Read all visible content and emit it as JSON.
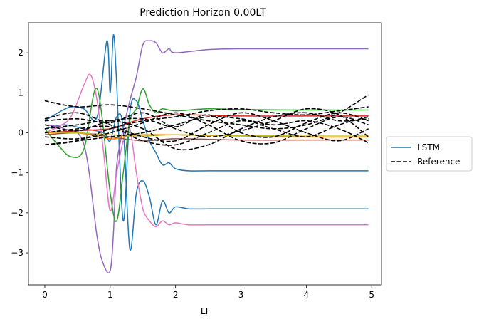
{
  "chart_data": {
    "type": "line",
    "title": "Prediction Horizon 0.00LT",
    "xlabel": "LT",
    "ylabel": "",
    "xlim": [
      -0.25,
      5.15
    ],
    "ylim": [
      -3.8,
      2.75
    ],
    "xticks": [
      0,
      1,
      2,
      3,
      4,
      5
    ],
    "yticks": [
      -3,
      -2,
      -1,
      0,
      1,
      2
    ],
    "grid": false,
    "legend": {
      "placement": "center-right-outside",
      "entries": [
        {
          "label": "LSTM",
          "style": "solid",
          "color": "#1f77b4"
        },
        {
          "label": "Reference",
          "style": "dashed",
          "color": "#000000"
        }
      ]
    },
    "series": [
      {
        "group": "LSTM",
        "color": "#1f77b4",
        "style": "solid",
        "x": [
          0,
          0.2,
          0.4,
          0.6,
          0.8,
          0.95,
          1.0,
          1.05,
          1.1,
          1.2,
          1.3,
          1.4,
          1.5,
          1.6,
          1.7,
          1.8,
          1.9,
          2.0,
          2.2,
          2.5,
          3.0,
          4.0,
          4.95
        ],
        "y": [
          0.3,
          0.5,
          0.65,
          0.6,
          0.4,
          2.3,
          1.0,
          2.45,
          1.2,
          -2.2,
          0.5,
          0.8,
          0.3,
          -0.2,
          -0.5,
          -0.8,
          -0.75,
          -0.9,
          -0.95,
          -0.95,
          -0.95,
          -0.95,
          -0.95
        ]
      },
      {
        "group": "LSTM",
        "color": "#1f77b4",
        "style": "solid",
        "x": [
          0,
          0.3,
          0.6,
          0.9,
          1.0,
          1.1,
          1.2,
          1.3,
          1.4,
          1.5,
          1.6,
          1.7,
          1.8,
          1.9,
          2.0,
          2.2,
          2.5,
          3.0,
          4.0,
          4.95
        ],
        "y": [
          0.1,
          0.2,
          0.1,
          0.0,
          -0.2,
          0.4,
          0.1,
          -2.9,
          -1.5,
          -1.2,
          -1.6,
          -2.3,
          -1.7,
          -2.0,
          -1.85,
          -1.9,
          -1.9,
          -1.9,
          -1.9,
          -1.9
        ]
      },
      {
        "group": "LSTM",
        "color": "#9467bd",
        "style": "solid",
        "x": [
          0,
          0.3,
          0.6,
          0.8,
          0.9,
          1.0,
          1.05,
          1.1,
          1.2,
          1.3,
          1.4,
          1.5,
          1.6,
          1.7,
          1.8,
          1.9,
          2.0,
          2.5,
          3.0,
          4.0,
          4.95
        ],
        "y": [
          0.2,
          0.1,
          -0.3,
          -2.6,
          -3.3,
          -3.45,
          -2.5,
          -0.8,
          0.1,
          0.8,
          1.4,
          2.2,
          2.3,
          2.25,
          2.0,
          2.1,
          2.0,
          2.08,
          2.1,
          2.1,
          2.1
        ]
      },
      {
        "group": "LSTM",
        "color": "#e377c2",
        "style": "solid",
        "x": [
          0,
          0.2,
          0.4,
          0.6,
          0.7,
          0.8,
          0.9,
          1.0,
          1.1,
          1.2,
          1.3,
          1.4,
          1.5,
          1.6,
          1.7,
          1.8,
          1.9,
          2.0,
          2.2,
          2.5,
          3.0,
          4.0,
          4.95
        ],
        "y": [
          0.0,
          0.15,
          0.4,
          1.2,
          1.45,
          0.8,
          -0.5,
          -1.95,
          -1.0,
          -0.2,
          0.1,
          -1.0,
          -1.9,
          -2.2,
          -2.35,
          -2.2,
          -2.3,
          -2.25,
          -2.3,
          -2.3,
          -2.3,
          -2.3,
          -2.3
        ]
      },
      {
        "group": "LSTM",
        "color": "#2ca02c",
        "style": "solid",
        "x": [
          0,
          0.2,
          0.4,
          0.6,
          0.8,
          1.0,
          1.1,
          1.2,
          1.3,
          1.4,
          1.5,
          1.6,
          1.7,
          1.8,
          2.0,
          2.5,
          3.0,
          4.0,
          4.95
        ],
        "y": [
          0.1,
          -0.3,
          -0.6,
          -0.4,
          1.1,
          -1.5,
          -2.2,
          -1.0,
          0.3,
          0.6,
          1.1,
          0.7,
          0.5,
          0.6,
          0.55,
          0.6,
          0.58,
          0.57,
          0.57
        ]
      },
      {
        "group": "LSTM",
        "color": "#d62728",
        "style": "solid",
        "x": [
          0,
          0.5,
          1.0,
          1.2,
          1.5,
          2.0,
          3.0,
          4.0,
          4.95
        ],
        "y": [
          0.0,
          0.05,
          0.1,
          0.2,
          0.35,
          0.45,
          0.42,
          0.42,
          0.42
        ]
      },
      {
        "group": "LSTM",
        "color": "#8c564b",
        "style": "solid",
        "x": [
          0,
          0.5,
          1.0,
          1.5,
          2.0,
          3.0,
          4.0,
          4.95
        ],
        "y": [
          -0.05,
          0.0,
          -0.1,
          -0.2,
          -0.15,
          -0.18,
          -0.18,
          -0.18
        ]
      },
      {
        "group": "LSTM",
        "color": "#ff7f0e",
        "style": "solid",
        "x": [
          0,
          0.5,
          1.0,
          1.2,
          1.5,
          2.0,
          3.0,
          4.0,
          4.95
        ],
        "y": [
          0.0,
          0.0,
          -0.15,
          -0.1,
          -0.05,
          -0.05,
          -0.08,
          -0.1,
          -0.1
        ]
      },
      {
        "group": "LSTM",
        "color": "#bcbd22",
        "style": "solid",
        "x": [
          0,
          0.5,
          1.0,
          1.5,
          2.0,
          3.0,
          4.0,
          4.95
        ],
        "y": [
          0.02,
          0.0,
          -0.05,
          -0.08,
          -0.05,
          -0.07,
          -0.06,
          -0.06
        ]
      },
      {
        "group": "Reference",
        "color": "#000000",
        "style": "dashed",
        "x": [
          0,
          0.5,
          1.0,
          1.5,
          2.0,
          2.5,
          3.0,
          3.5,
          4.0,
          4.5,
          4.95
        ],
        "y": [
          0.8,
          0.65,
          0.7,
          0.6,
          0.45,
          0.3,
          0.2,
          0.1,
          0.2,
          0.5,
          0.95
        ]
      },
      {
        "group": "Reference",
        "color": "#000000",
        "style": "dashed",
        "x": [
          0,
          0.5,
          1.0,
          1.5,
          2.0,
          2.5,
          3.0,
          3.5,
          4.0,
          4.5,
          4.95
        ],
        "y": [
          -0.3,
          -0.2,
          0.1,
          0.3,
          0.4,
          0.55,
          0.6,
          0.5,
          0.45,
          0.55,
          0.65
        ]
      },
      {
        "group": "Reference",
        "color": "#000000",
        "style": "dashed",
        "x": [
          0,
          0.5,
          1.0,
          1.5,
          2.0,
          2.5,
          3.0,
          3.5,
          4.0,
          4.5,
          4.95
        ],
        "y": [
          0.35,
          0.5,
          0.2,
          -0.1,
          -0.2,
          0.2,
          0.5,
          0.3,
          0.0,
          -0.2,
          0.1
        ]
      },
      {
        "group": "Reference",
        "color": "#000000",
        "style": "dashed",
        "x": [
          0,
          0.5,
          1.0,
          1.5,
          2.0,
          2.5,
          3.0,
          3.5,
          4.0,
          4.5,
          4.95
        ],
        "y": [
          0.1,
          0.2,
          0.3,
          0.1,
          -0.4,
          -0.3,
          0.1,
          0.4,
          0.5,
          0.3,
          0.35
        ]
      },
      {
        "group": "Reference",
        "color": "#000000",
        "style": "dashed",
        "x": [
          0,
          0.5,
          1.0,
          1.5,
          2.0,
          2.5,
          3.0,
          3.5,
          4.0,
          4.5,
          4.95
        ],
        "y": [
          -0.1,
          -0.15,
          0.0,
          0.25,
          0.5,
          0.2,
          -0.2,
          -0.25,
          0.1,
          0.4,
          0.2
        ]
      },
      {
        "group": "Reference",
        "color": "#000000",
        "style": "dashed",
        "x": [
          0,
          0.5,
          1.0,
          1.5,
          2.0,
          2.5,
          3.0,
          3.5,
          4.0,
          4.5,
          4.95
        ],
        "y": [
          0.3,
          0.35,
          0.25,
          0.5,
          0.1,
          -0.1,
          0.05,
          0.3,
          0.6,
          0.45,
          -0.1
        ]
      },
      {
        "group": "Reference",
        "color": "#000000",
        "style": "dashed",
        "x": [
          0,
          0.5,
          1.0,
          1.5,
          2.0,
          2.5,
          3.0,
          3.5,
          4.0,
          4.5,
          4.95
        ],
        "y": [
          -0.3,
          -0.2,
          -0.1,
          0.0,
          0.2,
          0.4,
          0.35,
          0.2,
          0.3,
          0.1,
          -0.25
        ]
      },
      {
        "group": "Reference",
        "color": "#000000",
        "style": "dashed",
        "x": [
          0,
          0.5,
          1.0,
          1.5,
          2.0,
          2.5,
          3.0,
          3.5,
          4.0,
          4.5,
          4.95
        ],
        "y": [
          0.0,
          0.1,
          0.15,
          -0.2,
          -0.3,
          0.0,
          0.3,
          0.1,
          -0.1,
          0.2,
          0.4
        ]
      },
      {
        "group": "Reference",
        "color": "#000000",
        "style": "dashed",
        "x": [
          0,
          0.5,
          1.0,
          1.5,
          2.0,
          2.5,
          3.0,
          3.5,
          4.0,
          4.5,
          4.95
        ],
        "y": [
          0.2,
          0.05,
          0.3,
          0.35,
          0.15,
          0.45,
          0.0,
          -0.1,
          0.25,
          0.5,
          0.3
        ]
      }
    ]
  }
}
